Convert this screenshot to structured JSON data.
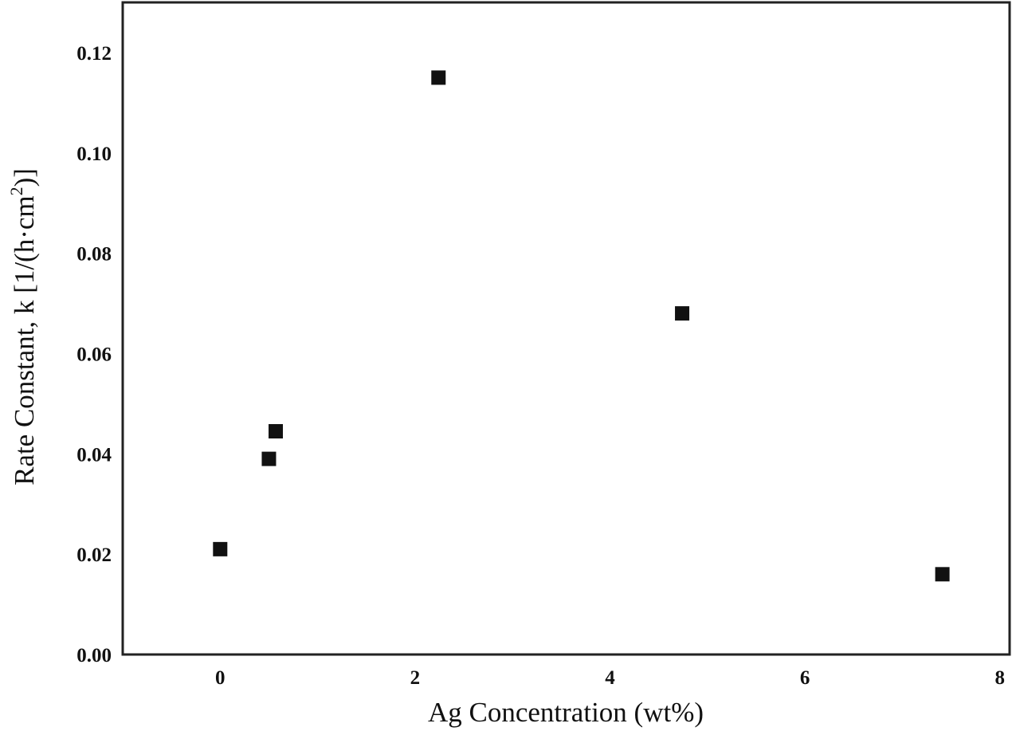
{
  "chart_data": {
    "type": "scatter",
    "title": "",
    "xlabel": "Ag Concentration (wt%)",
    "ylabel_main": "Rate Constant, k [1/(h·cm",
    "ylabel_sup": "2",
    "ylabel_end": ")]",
    "xlim": [
      -1,
      8.1
    ],
    "ylim": [
      0,
      0.13
    ],
    "xticks": [
      0,
      2,
      4,
      6,
      8
    ],
    "xtick_labels": [
      "0",
      "2",
      "4",
      "6",
      "8"
    ],
    "yticks": [
      0,
      0.02,
      0.04,
      0.06,
      0.08,
      0.1,
      0.12
    ],
    "ytick_labels": [
      "0.00",
      "0.02",
      "0.04",
      "0.06",
      "0.08",
      "0.10",
      "0.12"
    ],
    "grid": false,
    "marker": "square",
    "color": "#111111",
    "points": [
      {
        "x": 0,
        "y": 0.021
      },
      {
        "x": 0.5,
        "y": 0.039
      },
      {
        "x": 0.57,
        "y": 0.0445
      },
      {
        "x": 2.24,
        "y": 0.115
      },
      {
        "x": 4.74,
        "y": 0.068
      },
      {
        "x": 7.41,
        "y": 0.016
      }
    ]
  }
}
